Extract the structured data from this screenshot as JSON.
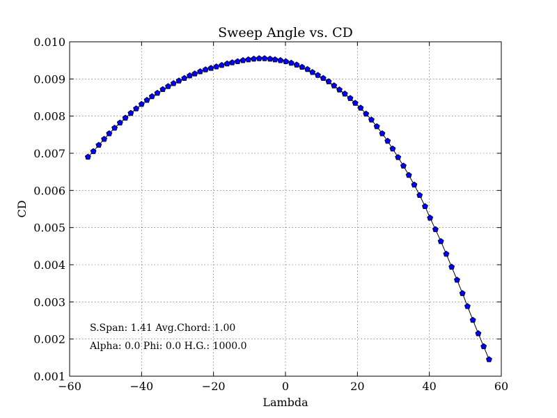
{
  "chart_data": {
    "type": "line",
    "title": "Sweep Angle vs. CD",
    "xlabel": "Lambda",
    "ylabel": "CD",
    "xlim": [
      -60,
      60
    ],
    "ylim": [
      0.001,
      0.01
    ],
    "xticks": [
      -60,
      -40,
      -20,
      0,
      20,
      40,
      60
    ],
    "xtick_labels": [
      "−60",
      "−40",
      "−20",
      "0",
      "20",
      "40",
      "60"
    ],
    "yticks": [
      0.001,
      0.002,
      0.003,
      0.004,
      0.005,
      0.006,
      0.007,
      0.008,
      0.009,
      0.01
    ],
    "ytick_labels": [
      "0.001",
      "0.002",
      "0.003",
      "0.004",
      "0.005",
      "0.006",
      "0.007",
      "0.008",
      "0.009",
      "0.010"
    ],
    "grid": true,
    "line_color": "#000000",
    "marker": "pentagon",
    "marker_color": "#0000ff",
    "series": [
      {
        "x": [
          -54.9,
          -53.4,
          -51.9,
          -50.4,
          -49.0,
          -47.5,
          -46.0,
          -44.5,
          -43.0,
          -41.5,
          -40.0,
          -38.5,
          -37.1,
          -35.6,
          -34.1,
          -32.6,
          -31.1,
          -29.6,
          -28.1,
          -26.6,
          -25.2,
          -23.7,
          -22.2,
          -20.7,
          -19.2,
          -17.7,
          -16.2,
          -14.8,
          -13.3,
          -11.8,
          -10.3,
          -8.8,
          -7.3,
          -5.8,
          -4.3,
          -2.9,
          -1.4,
          0.1,
          1.6,
          3.1,
          4.6,
          6.1,
          7.5,
          9.0,
          10.5,
          12.0,
          13.5,
          15.0,
          16.5,
          18.0,
          19.4,
          20.9,
          22.4,
          23.9,
          25.4,
          26.9,
          28.4,
          29.8,
          31.3,
          32.8,
          34.3,
          35.8,
          37.3,
          38.8,
          40.2,
          41.7,
          43.2,
          44.7,
          46.2,
          47.7,
          49.2,
          50.6,
          52.1,
          53.6,
          55.1,
          56.6
        ],
        "values": [
          0.0069,
          0.00705,
          0.00722,
          0.00738,
          0.00753,
          0.00768,
          0.00782,
          0.00795,
          0.00808,
          0.0082,
          0.00832,
          0.00843,
          0.00853,
          0.00862,
          0.00872,
          0.0088,
          0.00888,
          0.00895,
          0.00902,
          0.00909,
          0.00914,
          0.0092,
          0.00925,
          0.00929,
          0.00933,
          0.00937,
          0.00941,
          0.00944,
          0.00947,
          0.0095,
          0.00952,
          0.00954,
          0.00955,
          0.00955,
          0.00954,
          0.00952,
          0.0095,
          0.00947,
          0.00943,
          0.00938,
          0.00932,
          0.00926,
          0.00918,
          0.0091,
          0.00902,
          0.00893,
          0.00882,
          0.00871,
          0.0086,
          0.00848,
          0.00835,
          0.00822,
          0.00806,
          0.0079,
          0.00772,
          0.00753,
          0.00733,
          0.00712,
          0.00689,
          0.00666,
          0.00641,
          0.00615,
          0.00587,
          0.00557,
          0.00526,
          0.00495,
          0.00463,
          0.00429,
          0.00394,
          0.00359,
          0.00323,
          0.00288,
          0.00251,
          0.00215,
          0.0018,
          0.00145
        ]
      }
    ],
    "annotations": [
      "S.Span: 1.41 Avg.Chord: 1.00",
      "Alpha:  0.0 Phi:  0.0 H.G.: 1000.0"
    ]
  }
}
